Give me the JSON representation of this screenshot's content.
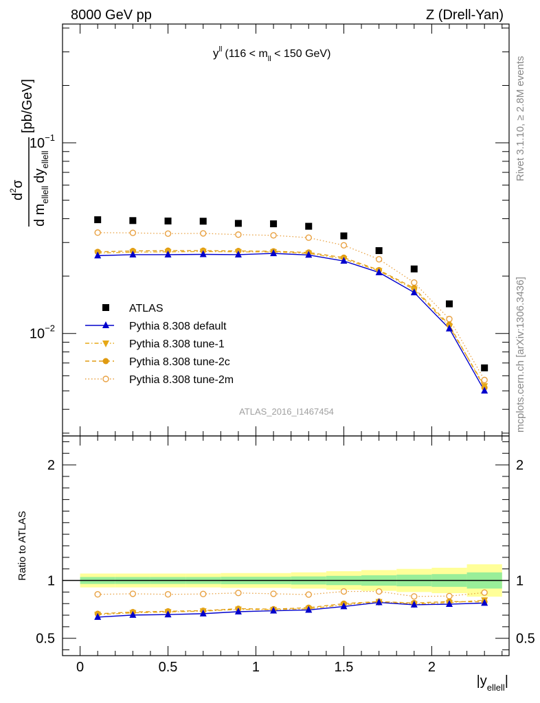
{
  "header": {
    "left": "8000 GeV pp",
    "right": "Z (Drell-Yan)"
  },
  "side_labels": {
    "rivet": "Rivet 3.1.10, ≥ 2.8M events",
    "mcplots": "mcplots.cern.ch [arXiv:1306.3436]"
  },
  "watermark": "ATLAS_2016_I1467454",
  "chart_data": {
    "type": "scatter",
    "title": {
      "main": "y",
      "main_sup": "ll",
      "cut_pre": "(116 < m",
      "cut_sub": "ll",
      "cut_post": " < 150 GeV)"
    },
    "ylabel": {
      "num": "d",
      "num_sup": "2",
      "num_tail": "σ",
      "den_d1": "d m",
      "den_sub1": "ellell",
      "den_d2": "dy",
      "den_sub2": "ellell",
      "unit": "[pb/GeV]"
    },
    "xlabel": {
      "text": "|y",
      "sub": "ellell",
      "tail": "|"
    },
    "ratio_ylabel": "Ratio to ATLAS",
    "x_ticks": [
      "0",
      "0.5",
      "1",
      "1.5",
      "2"
    ],
    "x_tick_values": [
      0,
      0.5,
      1,
      1.5,
      2
    ],
    "xlim": [
      -0.1,
      2.44
    ],
    "main_ylim": [
      0.0029,
      0.42
    ],
    "main_yscale": "log",
    "main_y_ticks": [
      {
        "value": 0.1,
        "base": "10",
        "exp": "−1"
      },
      {
        "value": 0.01,
        "base": "10",
        "exp": "−2"
      }
    ],
    "ratio_ylim": [
      0.35,
      2.25
    ],
    "ratio_y_ticks": [
      "0.5",
      "1",
      "2"
    ],
    "ratio_y_tick_values": [
      0.5,
      1,
      2
    ],
    "x": [
      0.1,
      0.3,
      0.5,
      0.7,
      0.9,
      1.1,
      1.3,
      1.5,
      1.7,
      1.9,
      2.1,
      2.3
    ],
    "bin_edges": [
      0,
      0.2,
      0.4,
      0.6,
      0.8,
      1.0,
      1.2,
      1.4,
      1.6,
      1.8,
      2.0,
      2.2,
      2.4
    ],
    "series": [
      {
        "name": "ATLAS",
        "marker": "square",
        "color": "#000000",
        "line": "none",
        "values": [
          0.0395,
          0.0391,
          0.0389,
          0.0388,
          0.0378,
          0.0376,
          0.0365,
          0.0325,
          0.0272,
          0.0218,
          0.0143,
          0.0066
        ],
        "ratio": [
          1,
          1,
          1,
          1,
          1,
          1,
          1,
          1,
          1,
          1,
          1,
          1
        ],
        "band_inner": [
          0.03,
          0.03,
          0.03,
          0.03,
          0.032,
          0.032,
          0.035,
          0.04,
          0.045,
          0.05,
          0.055,
          0.07
        ],
        "band_outer": [
          0.06,
          0.06,
          0.06,
          0.06,
          0.064,
          0.064,
          0.07,
          0.08,
          0.09,
          0.1,
          0.11,
          0.14
        ]
      },
      {
        "name": "Pythia 8.308 default",
        "marker": "triangle-up",
        "color": "#0000cc",
        "line": "solid",
        "values": [
          0.0256,
          0.0259,
          0.0259,
          0.026,
          0.0259,
          0.0263,
          0.0258,
          0.024,
          0.0209,
          0.0164,
          0.0106,
          0.005
        ],
        "ratio": [
          0.683,
          0.701,
          0.705,
          0.713,
          0.73,
          0.738,
          0.745,
          0.775,
          0.81,
          0.79,
          0.795,
          0.805
        ]
      },
      {
        "name": "Pythia 8.308 tune-1",
        "marker": "triangle-down",
        "color": "#e6a817",
        "line": "dashdot",
        "values": [
          0.0264,
          0.0267,
          0.0268,
          0.0269,
          0.0268,
          0.0268,
          0.0263,
          0.0246,
          0.0213,
          0.017,
          0.0109,
          0.0053
        ],
        "ratio": [
          0.705,
          0.72,
          0.728,
          0.735,
          0.75,
          0.748,
          0.755,
          0.79,
          0.815,
          0.797,
          0.808,
          0.83
        ]
      },
      {
        "name": "Pythia 8.308 tune-2c",
        "marker": "circle-filled",
        "color": "#e09a10",
        "line": "dashed",
        "values": [
          0.0268,
          0.0271,
          0.0272,
          0.0272,
          0.0271,
          0.027,
          0.0266,
          0.025,
          0.0215,
          0.0173,
          0.0111,
          0.0052
        ],
        "ratio": [
          0.712,
          0.727,
          0.734,
          0.739,
          0.756,
          0.752,
          0.765,
          0.8,
          0.818,
          0.805,
          0.818,
          0.815
        ]
      },
      {
        "name": "Pythia 8.308 tune-2m",
        "marker": "circle-open",
        "color": "#e8a040",
        "line": "dotted",
        "values": [
          0.0338,
          0.0337,
          0.0334,
          0.0335,
          0.033,
          0.0327,
          0.0318,
          0.029,
          0.0245,
          0.0185,
          0.0119,
          0.0057
        ],
        "ratio": [
          0.88,
          0.885,
          0.88,
          0.883,
          0.892,
          0.885,
          0.878,
          0.905,
          0.905,
          0.862,
          0.865,
          0.895
        ]
      }
    ],
    "legend_placement": "lower-left of main panel"
  }
}
